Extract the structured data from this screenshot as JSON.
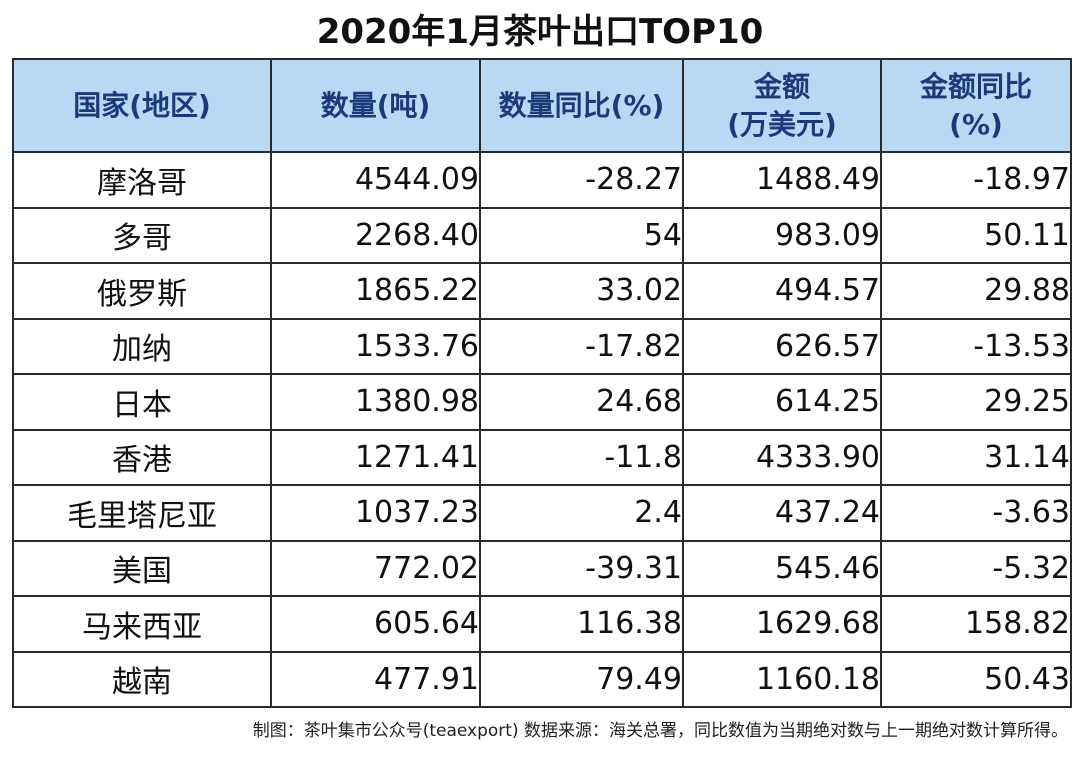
{
  "title": "2020年1月茶叶出口TOP10",
  "table": {
    "headers": [
      {
        "line1": "国家(地区)",
        "line2": ""
      },
      {
        "line1": "数量(吨)",
        "line2": ""
      },
      {
        "line1": "数量同比(%)",
        "line2": ""
      },
      {
        "line1": "金额",
        "line2": "(万美元)"
      },
      {
        "line1": "金额同比",
        "line2": "(%)"
      }
    ],
    "rows": [
      [
        "摩洛哥",
        "4544.09",
        "-28.27",
        "1488.49",
        "-18.97"
      ],
      [
        "多哥",
        "2268.40",
        "54",
        "983.09",
        "50.11"
      ],
      [
        "俄罗斯",
        "1865.22",
        "33.02",
        "494.57",
        "29.88"
      ],
      [
        "加纳",
        "1533.76",
        "-17.82",
        "626.57",
        "-13.53"
      ],
      [
        "日本",
        "1380.98",
        "24.68",
        "614.25",
        "29.25"
      ],
      [
        "香港",
        "1271.41",
        "-11.8",
        "4333.90",
        "31.14"
      ],
      [
        "毛里塔尼亚",
        "1037.23",
        "2.4",
        "437.24",
        "-3.63"
      ],
      [
        "美国",
        "772.02",
        "-39.31",
        "545.46",
        "-5.32"
      ],
      [
        "马来西亚",
        "605.64",
        "116.38",
        "1629.68",
        "158.82"
      ],
      [
        "越南",
        "477.91",
        "79.49",
        "1160.18",
        "50.43"
      ]
    ]
  },
  "footer": "制图：茶叶集市公众号(teaexport)   数据来源：海关总署，同比数值为当期绝对数与上一期绝对数计算所得。",
  "colors": {
    "header_bg": "#b9d8f3",
    "header_text": "#1c3a7a",
    "border": "#2b2b2b"
  }
}
